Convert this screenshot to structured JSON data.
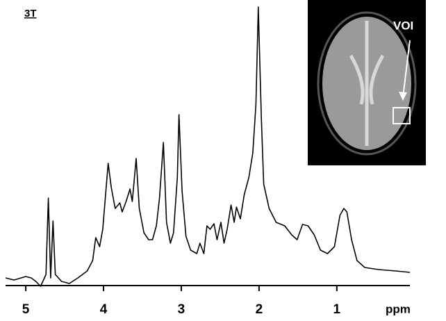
{
  "chart_data": {
    "type": "line",
    "title": "3T",
    "x_label": "ppm",
    "x": [
      5.26,
      5.15,
      5.0,
      4.93,
      4.87,
      4.81,
      4.78,
      4.74,
      4.71,
      4.68,
      4.65,
      4.62,
      4.54,
      4.44,
      4.33,
      4.21,
      4.14,
      4.1,
      4.05,
      4.01,
      3.97,
      3.94,
      3.9,
      3.85,
      3.79,
      3.76,
      3.71,
      3.66,
      3.63,
      3.58,
      3.54,
      3.48,
      3.42,
      3.37,
      3.32,
      3.28,
      3.23,
      3.19,
      3.14,
      3.1,
      3.05,
      3.03,
      2.99,
      2.94,
      2.88,
      2.8,
      2.76,
      2.71,
      2.67,
      2.63,
      2.58,
      2.54,
      2.49,
      2.45,
      2.41,
      2.36,
      2.32,
      2.29,
      2.24,
      2.19,
      2.13,
      2.08,
      2.04,
      2.01,
      1.97,
      1.94,
      1.87,
      1.78,
      1.67,
      1.58,
      1.51,
      1.44,
      1.37,
      1.29,
      1.21,
      1.12,
      1.03,
      0.96,
      0.91,
      0.87,
      0.81,
      0.74,
      0.64,
      0.46,
      0.24,
      0.06
    ],
    "values": [
      10,
      7,
      12,
      10,
      5,
      -2,
      5,
      15,
      125,
      10,
      92,
      15,
      5,
      2,
      10,
      20,
      35,
      68,
      55,
      80,
      135,
      175,
      140,
      110,
      118,
      105,
      120,
      138,
      120,
      182,
      110,
      75,
      65,
      65,
      85,
      125,
      205,
      90,
      60,
      75,
      155,
      245,
      135,
      70,
      50,
      45,
      60,
      45,
      85,
      80,
      88,
      65,
      90,
      60,
      80,
      115,
      90,
      112,
      95,
      130,
      155,
      190,
      260,
      400,
      240,
      145,
      110,
      90,
      85,
      72,
      65,
      87,
      85,
      72,
      50,
      45,
      55,
      100,
      110,
      105,
      65,
      35,
      25,
      22,
      20,
      18
    ],
    "color": "#000000",
    "xlim": [
      5.26,
      0.06
    ],
    "xticks": [
      5,
      4,
      3,
      2,
      1
    ],
    "ylim": [
      0,
      400
    ],
    "inset_label": "VOI"
  }
}
